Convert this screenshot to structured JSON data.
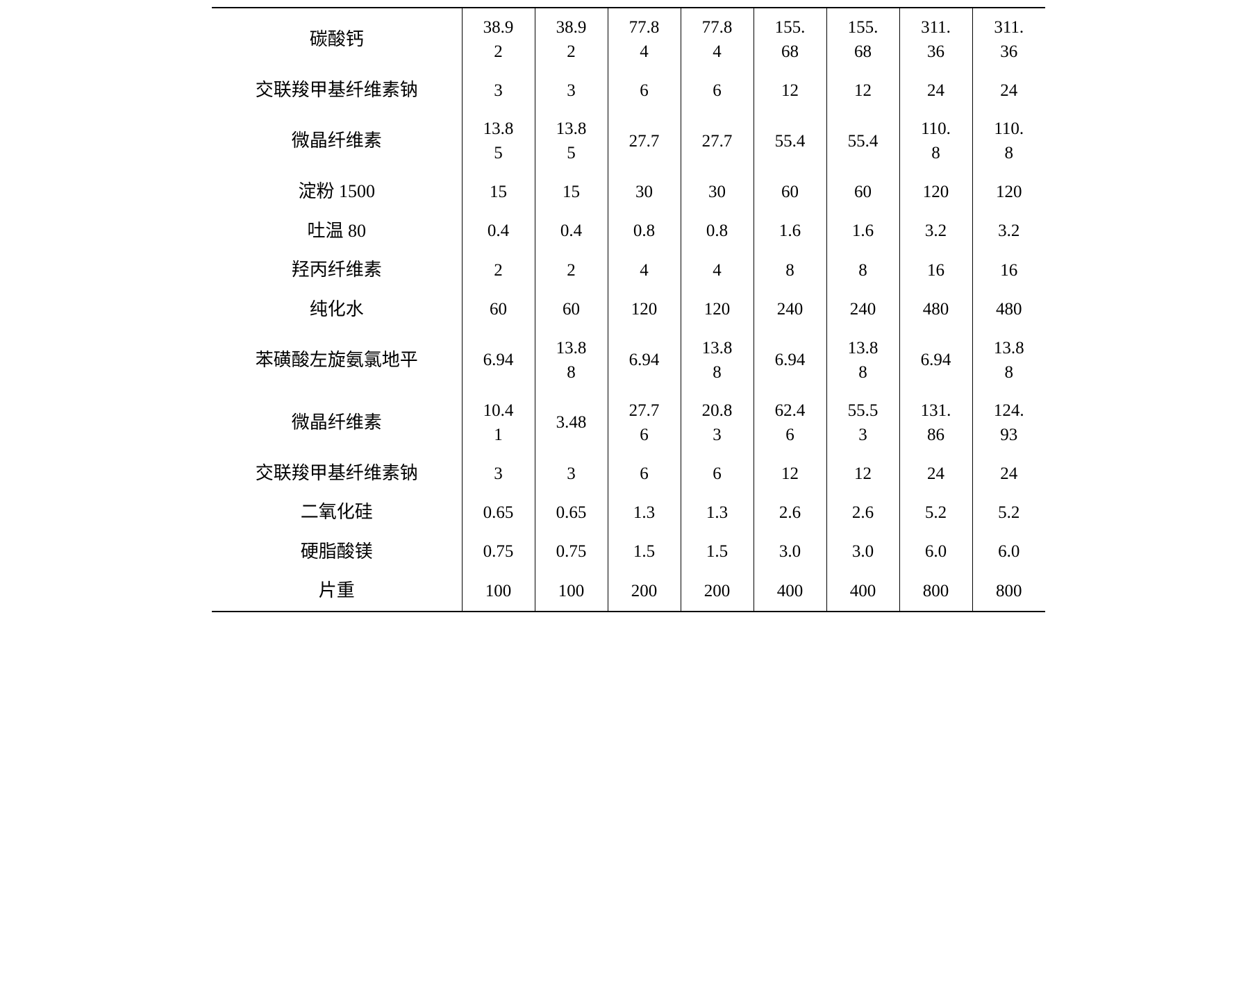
{
  "table": {
    "border_color": "#000000",
    "text_color": "#000000",
    "background_color": "#ffffff",
    "label_font_size": 26,
    "data_font_size": 25,
    "columns_count": 9,
    "rows": [
      {
        "label": "碳酸钙",
        "values": [
          "38.9\n2",
          "38.9\n2",
          "77.8\n4",
          "77.8\n4",
          "155.\n68",
          "155.\n68",
          "311.\n36",
          "311.\n36"
        ]
      },
      {
        "label": "交联羧甲基纤维素钠",
        "values": [
          "3",
          "3",
          "6",
          "6",
          "12",
          "12",
          "24",
          "24"
        ]
      },
      {
        "label": "微晶纤维素",
        "values": [
          "13.8\n5",
          "13.8\n5",
          "27.7",
          "27.7",
          "55.4",
          "55.4",
          "110.\n8",
          "110.\n8"
        ]
      },
      {
        "label": "淀粉 1500",
        "values": [
          "15",
          "15",
          "30",
          "30",
          "60",
          "60",
          "120",
          "120"
        ]
      },
      {
        "label": "吐温 80",
        "values": [
          "0.4",
          "0.4",
          "0.8",
          "0.8",
          "1.6",
          "1.6",
          "3.2",
          "3.2"
        ]
      },
      {
        "label": "羟丙纤维素",
        "values": [
          "2",
          "2",
          "4",
          "4",
          "8",
          "8",
          "16",
          "16"
        ]
      },
      {
        "label": "纯化水",
        "values": [
          "60",
          "60",
          "120",
          "120",
          "240",
          "240",
          "480",
          "480"
        ]
      },
      {
        "label": "苯磺酸左旋氨氯地平",
        "values": [
          "6.94",
          "13.8\n8",
          "6.94",
          "13.8\n8",
          "6.94",
          "13.8\n8",
          "6.94",
          "13.8\n8"
        ]
      },
      {
        "label": "微晶纤维素",
        "values": [
          "10.4\n1",
          "3.48",
          "27.7\n6",
          "20.8\n3",
          "62.4\n6",
          "55.5\n3",
          "131.\n86",
          "124.\n93"
        ]
      },
      {
        "label": "交联羧甲基纤维素钠",
        "values": [
          "3",
          "3",
          "6",
          "6",
          "12",
          "12",
          "24",
          "24"
        ]
      },
      {
        "label": "二氧化硅",
        "values": [
          "0.65",
          "0.65",
          "1.3",
          "1.3",
          "2.6",
          "2.6",
          "5.2",
          "5.2"
        ]
      },
      {
        "label": "硬脂酸镁",
        "values": [
          "0.75",
          "0.75",
          "1.5",
          "1.5",
          "3.0",
          "3.0",
          "6.0",
          "6.0"
        ]
      },
      {
        "label": "片重",
        "values": [
          "100",
          "100",
          "200",
          "200",
          "400",
          "400",
          "800",
          "800"
        ]
      }
    ]
  }
}
